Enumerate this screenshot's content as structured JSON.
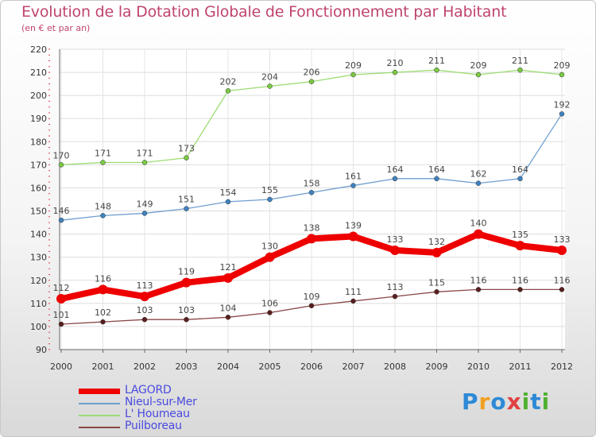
{
  "header": {
    "title": "Evolution de la Dotation Globale de Fonctionnement par Habitant",
    "subtitle": "(en € et par an)"
  },
  "logo": {
    "text": "Proxiti",
    "letters": [
      "P",
      "r",
      "o",
      "x",
      "i",
      "t",
      "i"
    ],
    "colors": [
      "#2d8ad6",
      "#f0a020",
      "#2d8ad6",
      "#e04040",
      "#50b030",
      "#2d8ad6",
      "#50b030"
    ]
  },
  "chart_data": {
    "type": "line",
    "title": "Evolution de la Dotation Globale de Fonctionnement par Habitant",
    "subtitle": "(en € et par an)",
    "xlabel": "",
    "ylabel": "",
    "x": [
      2000,
      2001,
      2002,
      2003,
      2004,
      2005,
      2006,
      2007,
      2008,
      2009,
      2010,
      2011,
      2012
    ],
    "ylim": [
      90,
      220
    ],
    "yticks": [
      90,
      100,
      110,
      120,
      130,
      140,
      150,
      160,
      170,
      180,
      190,
      200,
      210,
      220
    ],
    "grid": true,
    "legend_position": "bottom-left",
    "series": [
      {
        "name": "LAGORD",
        "color": "#ee0000",
        "marker_color": "#ee0000",
        "emphasis": true,
        "values": [
          112,
          116,
          113,
          119,
          121,
          130,
          138,
          139,
          133,
          132,
          140,
          135,
          133
        ]
      },
      {
        "name": "Nieul-sur-Mer",
        "color": "#6f9fcf",
        "marker_color": "#3f82c0",
        "emphasis": false,
        "values": [
          146,
          148,
          149,
          151,
          154,
          155,
          158,
          161,
          164,
          164,
          162,
          164,
          192
        ]
      },
      {
        "name": "L' Houmeau",
        "color": "#9cdc72",
        "marker_color": "#7ac943",
        "emphasis": false,
        "values": [
          170,
          171,
          171,
          173,
          202,
          204,
          206,
          209,
          210,
          211,
          209,
          211,
          209
        ]
      },
      {
        "name": "Puilboreau",
        "color": "#8a4848",
        "marker_color": "#5a1e1e",
        "emphasis": false,
        "values": [
          101,
          102,
          103,
          103,
          104,
          106,
          109,
          111,
          113,
          115,
          116,
          116,
          116
        ]
      }
    ]
  }
}
